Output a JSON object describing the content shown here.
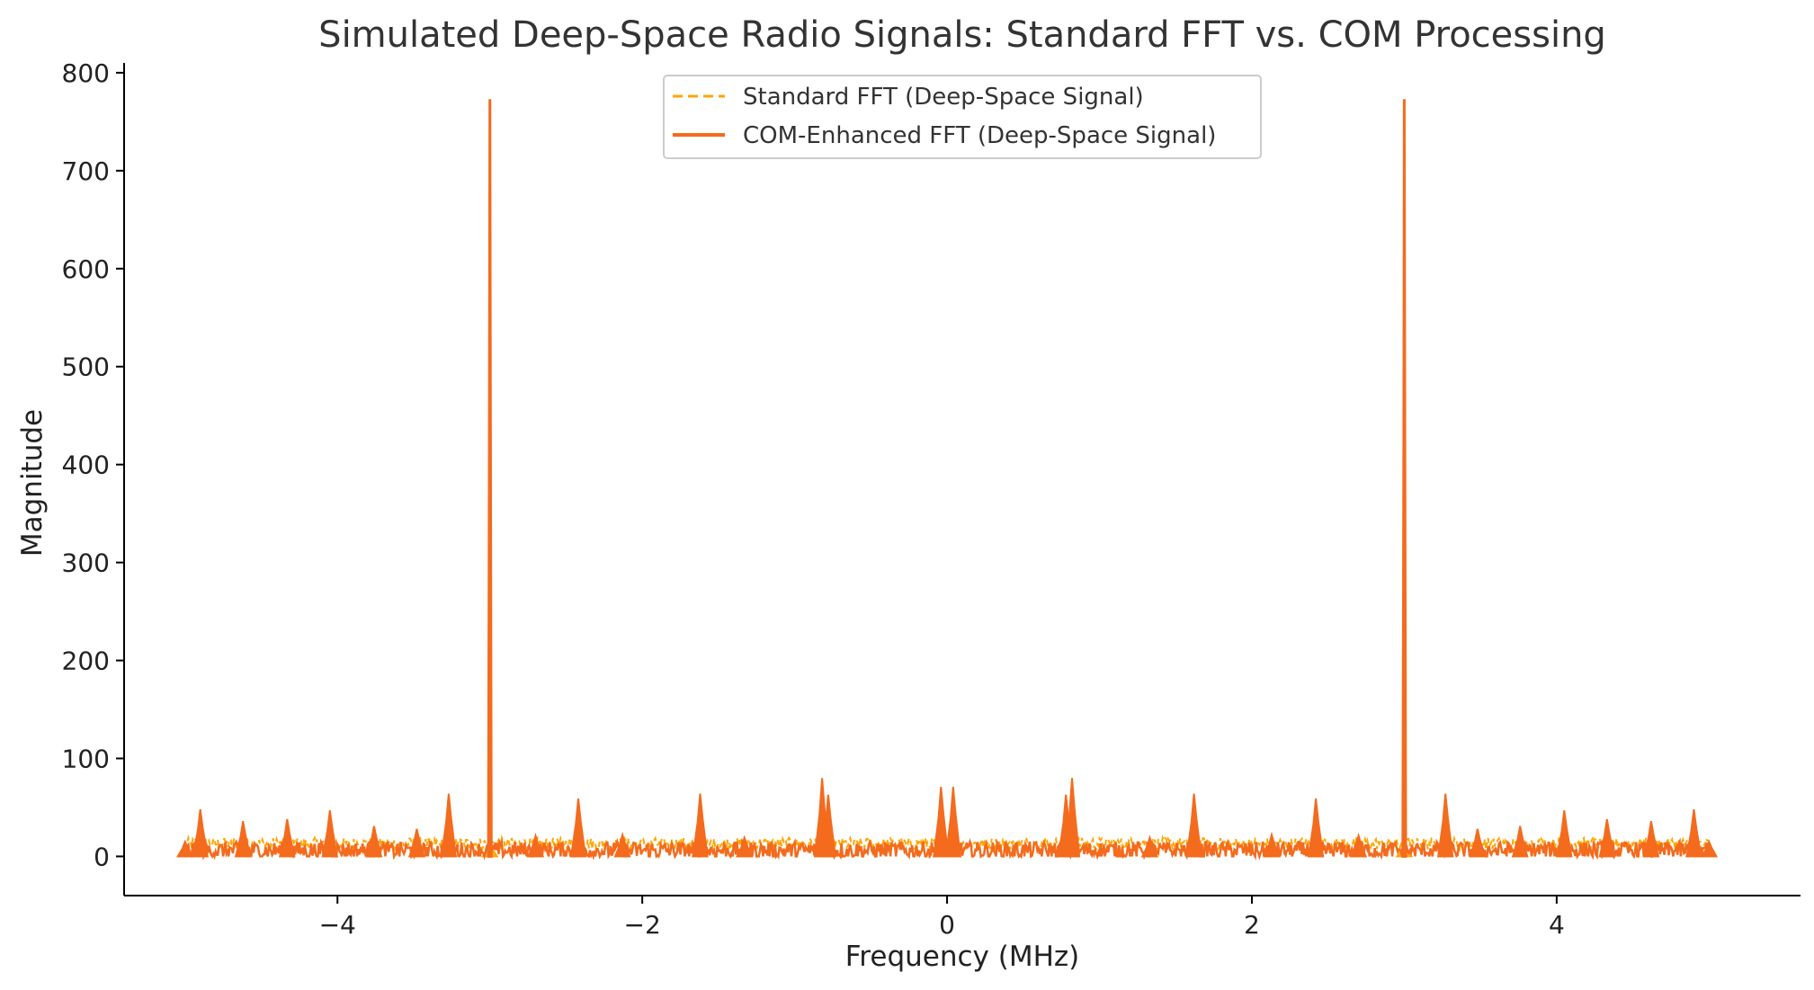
{
  "chart_data": {
    "type": "line",
    "title": "Simulated Deep-Space Radio Signals: Standard FFT vs. COM Processing",
    "xlabel": "Frequency (MHz)",
    "ylabel": "Magnitude",
    "xlim": [
      -5.4,
      5.6
    ],
    "ylim": [
      -40,
      810
    ],
    "xticks": [
      -4,
      -2,
      0,
      2,
      4
    ],
    "xtick_labels": [
      "−4",
      "−2",
      "0",
      "2",
      "4"
    ],
    "yticks": [
      0,
      100,
      200,
      300,
      400,
      500,
      600,
      700,
      800
    ],
    "ytick_labels": [
      "0",
      "100",
      "200",
      "300",
      "400",
      "500",
      "600",
      "700",
      "800"
    ],
    "grid": false,
    "legend": {
      "position": "top-center",
      "entries": [
        "Standard FFT (Deep-Space Signal)",
        "COM-Enhanced FFT (Deep-Space Signal)"
      ]
    },
    "series": [
      {
        "name": "Standard FFT (Deep-Space Signal)",
        "color": "#FFA500",
        "style": "dashed",
        "x": [
          -5.0,
          -4.9,
          -4.62,
          -4.33,
          -4.05,
          -3.76,
          -3.48,
          -3.27,
          -3.0,
          -2.7,
          -2.42,
          -2.13,
          -1.62,
          -1.33,
          -0.82,
          -0.78,
          -0.04,
          0.04,
          0.78,
          0.82,
          1.33,
          1.62,
          2.13,
          2.42,
          2.7,
          3.0,
          3.27,
          3.48,
          3.76,
          4.05,
          4.33,
          4.62,
          4.9,
          5.0
        ],
        "y": [
          14,
          24,
          18,
          20,
          22,
          15,
          14,
          28,
          12,
          16,
          27,
          17,
          27,
          15,
          30,
          28,
          30,
          30,
          28,
          30,
          15,
          27,
          17,
          27,
          16,
          12,
          28,
          14,
          15,
          22,
          20,
          18,
          24,
          14
        ]
      },
      {
        "name": "COM-Enhanced FFT (Deep-Space Signal)",
        "color": "#F46B1E",
        "style": "solid",
        "x": [
          -5.0,
          -4.9,
          -4.62,
          -4.33,
          -4.05,
          -3.76,
          -3.48,
          -3.27,
          -3.0,
          -2.7,
          -2.42,
          -2.13,
          -1.62,
          -1.33,
          -0.82,
          -0.78,
          -0.04,
          0.04,
          0.78,
          0.82,
          1.33,
          1.62,
          2.13,
          2.42,
          2.7,
          3.0,
          3.27,
          3.48,
          3.76,
          4.05,
          4.33,
          4.62,
          4.9,
          5.0
        ],
        "y": [
          15,
          48,
          36,
          38,
          47,
          31,
          28,
          64,
          773,
          21,
          59,
          22,
          64,
          19,
          80,
          63,
          71,
          71,
          63,
          80,
          19,
          64,
          22,
          59,
          21,
          773,
          64,
          28,
          31,
          47,
          38,
          36,
          48,
          15
        ]
      }
    ]
  }
}
